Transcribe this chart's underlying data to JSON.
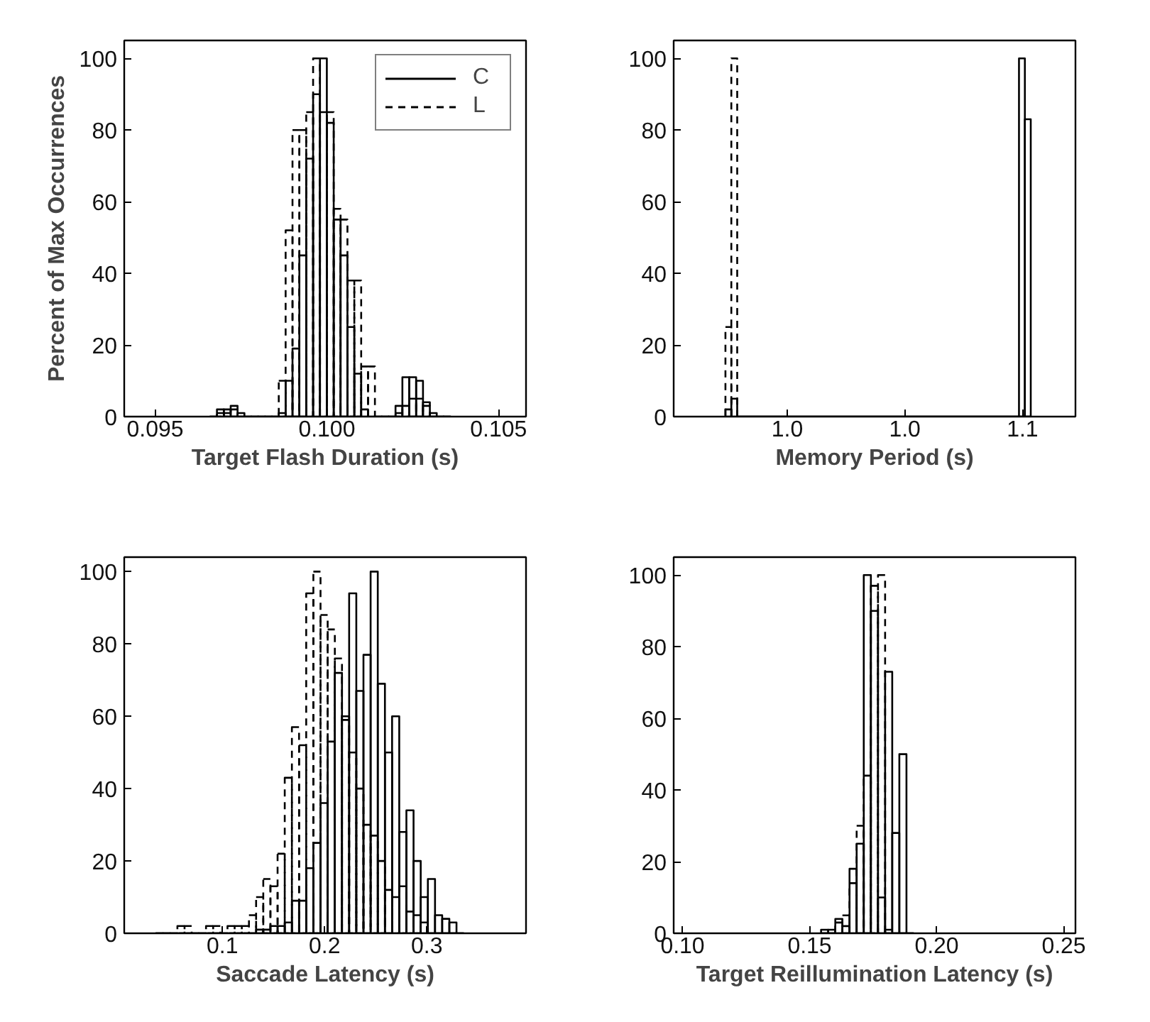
{
  "chart_data": [
    {
      "type": "histogram",
      "xlabel": "Target Flash Duration (s)",
      "ylabel": "Percent of Max Occurrences",
      "bins": [
        0.0966,
        0.0968,
        0.097,
        0.0972,
        0.0974,
        0.0976,
        0.0978,
        0.098,
        0.0982,
        0.0984,
        0.0986,
        0.0988,
        0.099,
        0.0992,
        0.0994,
        0.0996,
        0.0998,
        0.1,
        0.1002,
        0.1004,
        0.1006,
        0.1008,
        0.101,
        0.1012,
        0.1014,
        0.1016,
        0.1018,
        0.102,
        0.1022,
        0.1024,
        0.1026,
        0.1028,
        0.103,
        0.1032,
        0.1034,
        0.1036
      ],
      "series": [
        {
          "name": "C",
          "color": "#000000",
          "line_style": "solid",
          "values": [
            0,
            2,
            2,
            3,
            1,
            0,
            0,
            0,
            0,
            0,
            1,
            10,
            19,
            45,
            72,
            90,
            100,
            82,
            55,
            45,
            25,
            12,
            2,
            0,
            0,
            0,
            0,
            3,
            11,
            11,
            10,
            4,
            1,
            0,
            0
          ]
        },
        {
          "name": "L",
          "color": "#000000",
          "line_style": "dashed",
          "values": [
            0,
            1,
            1,
            2,
            0,
            0,
            0,
            0,
            0,
            0,
            10,
            52,
            80,
            80,
            85,
            100,
            85,
            85,
            58,
            55,
            38,
            38,
            14,
            14,
            0,
            0,
            0,
            1,
            3,
            5,
            5,
            3,
            0,
            0,
            0
          ]
        }
      ],
      "xlim": [
        0.0941,
        0.1058
      ],
      "ylim": [
        0,
        105
      ],
      "xticks": [
        0.095,
        {
          "value": 0.1,
          "label": "0.100"
        },
        0.105
      ],
      "yticks": [
        0,
        20,
        40,
        60,
        80,
        100
      ],
      "legend": "top right",
      "grid": false
    },
    {
      "type": "histogram",
      "xlabel": "Memory Period (s)",
      "bins": [
        1.0095,
        1.0105,
        1.0115,
        1.0594,
        1.0604,
        1.0614
      ],
      "series": [
        {
          "color": "#000000",
          "line_style": "solid",
          "values": [
            2,
            5,
            0,
            100,
            83
          ]
        },
        {
          "color": "#000000",
          "line_style": "dashed",
          "values": [
            25,
            100,
            0,
            0,
            0
          ]
        }
      ],
      "xlim": [
        1.0007,
        1.069
      ],
      "ylim": [
        0,
        105
      ],
      "xticks": [
        {
          "value": 1.02,
          "label": "1.0"
        },
        {
          "value": 1.04,
          "label": "1.0"
        },
        {
          "value": 1.06,
          "label": "1.1"
        }
      ],
      "yticks": [
        0,
        20,
        40,
        60,
        80,
        100
      ],
      "legend": false,
      "grid": false
    },
    {
      "type": "histogram",
      "xlabel": "Saccade Latency (s)",
      "bins": [
        0.035,
        0.042,
        0.049,
        0.056,
        0.063,
        0.07,
        0.077,
        0.084,
        0.091,
        0.098,
        0.105,
        0.112,
        0.119,
        0.126,
        0.133,
        0.14,
        0.147,
        0.154,
        0.161,
        0.168,
        0.175,
        0.182,
        0.189,
        0.196,
        0.203,
        0.21,
        0.217,
        0.224,
        0.231,
        0.238,
        0.245,
        0.252,
        0.259,
        0.266,
        0.273,
        0.28,
        0.287,
        0.294,
        0.301,
        0.308,
        0.315,
        0.322,
        0.329,
        0.336
      ],
      "series": [
        {
          "color": "#000000",
          "line_style": "solid",
          "values": [
            0,
            0,
            0,
            0,
            0,
            0,
            0,
            0,
            0,
            0,
            0,
            0,
            0,
            0,
            1,
            1,
            2,
            2,
            3,
            9,
            9,
            18,
            25,
            36,
            53,
            72,
            60,
            94,
            67,
            77,
            100,
            69,
            50,
            60,
            28,
            34,
            20,
            10,
            15,
            5,
            4,
            3,
            0
          ]
        },
        {
          "color": "#000000",
          "line_style": "dashed",
          "values": [
            0,
            0,
            0,
            2,
            2,
            0,
            0,
            2,
            2,
            0,
            2,
            2,
            2,
            5,
            10,
            15,
            13,
            22,
            43,
            57,
            52,
            94,
            100,
            88,
            84,
            76,
            59,
            50,
            40,
            30,
            27,
            20,
            12,
            10,
            13,
            6,
            5,
            3,
            0,
            0,
            0,
            0,
            0
          ]
        }
      ],
      "xlim": [
        0.004,
        0.397
      ],
      "ylim": [
        0,
        104
      ],
      "xticks": [
        0.1,
        0.2,
        0.3
      ],
      "yticks": [
        0,
        20,
        40,
        60,
        80,
        100
      ],
      "legend": false,
      "grid": false
    },
    {
      "type": "histogram",
      "xlabel": "Target Reillumination Latency (s)",
      "bins": [
        0.1545,
        0.1573,
        0.1601,
        0.1629,
        0.1657,
        0.1685,
        0.1713,
        0.1741,
        0.1769,
        0.1797,
        0.1825,
        0.1853,
        0.1881,
        0.1909
      ],
      "series": [
        {
          "color": "#000000",
          "line_style": "solid",
          "values": [
            1,
            1,
            4,
            2,
            18,
            25,
            100,
            90,
            10,
            73,
            28,
            50,
            0
          ]
        },
        {
          "color": "#000000",
          "line_style": "dashed",
          "values": [
            0,
            0,
            3,
            5,
            14,
            30,
            44,
            97,
            100,
            1,
            0,
            0,
            0
          ]
        }
      ],
      "xlim": [
        0.0965,
        0.2546
      ],
      "ylim": [
        0,
        105
      ],
      "xticks": [
        {
          "value": 0.1,
          "label": "0.10"
        },
        {
          "value": 0.15,
          "label": "0.15"
        },
        {
          "value": 0.2,
          "label": "0.20"
        },
        {
          "value": 0.25,
          "label": "0.25"
        }
      ],
      "yticks": [
        0,
        20,
        40,
        60,
        80,
        100
      ],
      "legend": false,
      "grid": false
    }
  ]
}
